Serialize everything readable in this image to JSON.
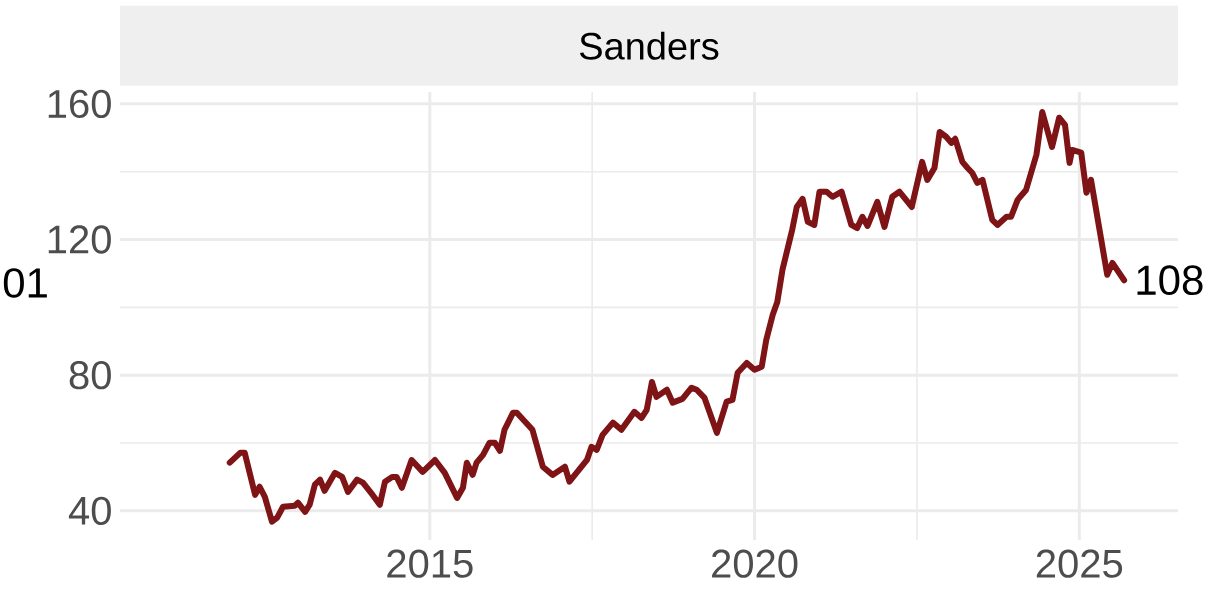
{
  "chart_data": {
    "type": "line",
    "title": "Sanders",
    "x": [
      2011.92,
      2012.08,
      2012.15,
      2012.31,
      2012.38,
      2012.46,
      2012.57,
      2012.65,
      2012.74,
      2012.92,
      2012.97,
      2013.08,
      2013.15,
      2013.23,
      2013.31,
      2013.38,
      2013.54,
      2013.65,
      2013.74,
      2013.88,
      2013.97,
      2014.12,
      2014.23,
      2014.31,
      2014.42,
      2014.49,
      2014.57,
      2014.72,
      2014.89,
      2015.08,
      2015.23,
      2015.42,
      2015.51,
      2015.57,
      2015.66,
      2015.72,
      2015.82,
      2015.92,
      2016.0,
      2016.08,
      2016.15,
      2016.28,
      2016.34,
      2016.51,
      2016.58,
      2016.74,
      2016.89,
      2017.08,
      2017.15,
      2017.42,
      2017.49,
      2017.57,
      2017.66,
      2017.82,
      2017.95,
      2018.15,
      2018.26,
      2018.34,
      2018.42,
      2018.49,
      2018.65,
      2018.74,
      2018.89,
      2019.03,
      2019.11,
      2019.23,
      2019.42,
      2019.57,
      2019.66,
      2019.74,
      2019.88,
      2020.0,
      2020.11,
      2020.18,
      2020.28,
      2020.35,
      2020.43,
      2020.58,
      2020.65,
      2020.74,
      2020.82,
      2020.92,
      2021.0,
      2021.11,
      2021.2,
      2021.34,
      2021.49,
      2021.58,
      2021.66,
      2021.74,
      2021.89,
      2022.0,
      2022.12,
      2022.23,
      2022.42,
      2022.58,
      2022.66,
      2022.77,
      2022.85,
      2022.95,
      2023.03,
      2023.09,
      2023.2,
      2023.28,
      2023.35,
      2023.43,
      2023.51,
      2023.66,
      2023.74,
      2023.88,
      2023.95,
      2024.05,
      2024.18,
      2024.34,
      2024.43,
      2024.58,
      2024.69,
      2024.78,
      2024.85,
      2024.89,
      2025.03,
      2025.11,
      2025.18,
      2025.43,
      2025.51,
      2025.69
    ],
    "series": [
      {
        "color": "#7f1416",
        "values": [
          54.2,
          57.1,
          57.1,
          44.7,
          47.1,
          44.1,
          36.8,
          38.0,
          41.2,
          41.5,
          42.4,
          39.7,
          41.8,
          47.7,
          49.2,
          45.9,
          51.2,
          50.0,
          45.6,
          49.2,
          48.3,
          44.7,
          41.8,
          48.6,
          50.0,
          50.0,
          46.8,
          55.0,
          51.5,
          55.0,
          51.2,
          43.8,
          46.8,
          54.2,
          50.6,
          54.2,
          56.5,
          60.1,
          60.1,
          57.7,
          63.9,
          68.9,
          68.9,
          65.4,
          63.9,
          53.0,
          50.6,
          53.0,
          48.6,
          55.0,
          58.9,
          58.0,
          62.4,
          66.0,
          63.9,
          69.2,
          67.4,
          69.8,
          78.0,
          73.6,
          75.7,
          71.9,
          73.0,
          76.3,
          75.7,
          73.3,
          63.0,
          72.2,
          72.7,
          80.7,
          83.6,
          81.6,
          82.5,
          90.4,
          97.8,
          101.6,
          111.1,
          122.9,
          129.6,
          132.0,
          125.2,
          124.3,
          134.1,
          134.1,
          132.6,
          134.1,
          124.3,
          123.4,
          126.7,
          124.0,
          131.1,
          123.7,
          132.6,
          134.1,
          129.6,
          142.9,
          137.6,
          141.1,
          151.7,
          150.3,
          148.5,
          149.7,
          142.9,
          141.1,
          139.7,
          136.7,
          137.6,
          125.8,
          124.3,
          126.7,
          126.7,
          131.7,
          134.6,
          145.0,
          157.6,
          147.3,
          155.9,
          153.8,
          142.6,
          146.4,
          145.6,
          133.8,
          137.6,
          109.6,
          113.1,
          108
        ]
      }
    ],
    "xlim": [
      2010.23,
      2026.52
    ],
    "ylim": [
      31.4,
      163.5
    ],
    "xticks": [
      2015,
      2020,
      2025
    ],
    "yticks": [
      40,
      80,
      120,
      160
    ],
    "grid": true,
    "marker": "none",
    "line_style": "solid",
    "annotations": [
      {
        "text": "108",
        "x": 2025.69,
        "y": 108
      },
      "01"
    ]
  }
}
